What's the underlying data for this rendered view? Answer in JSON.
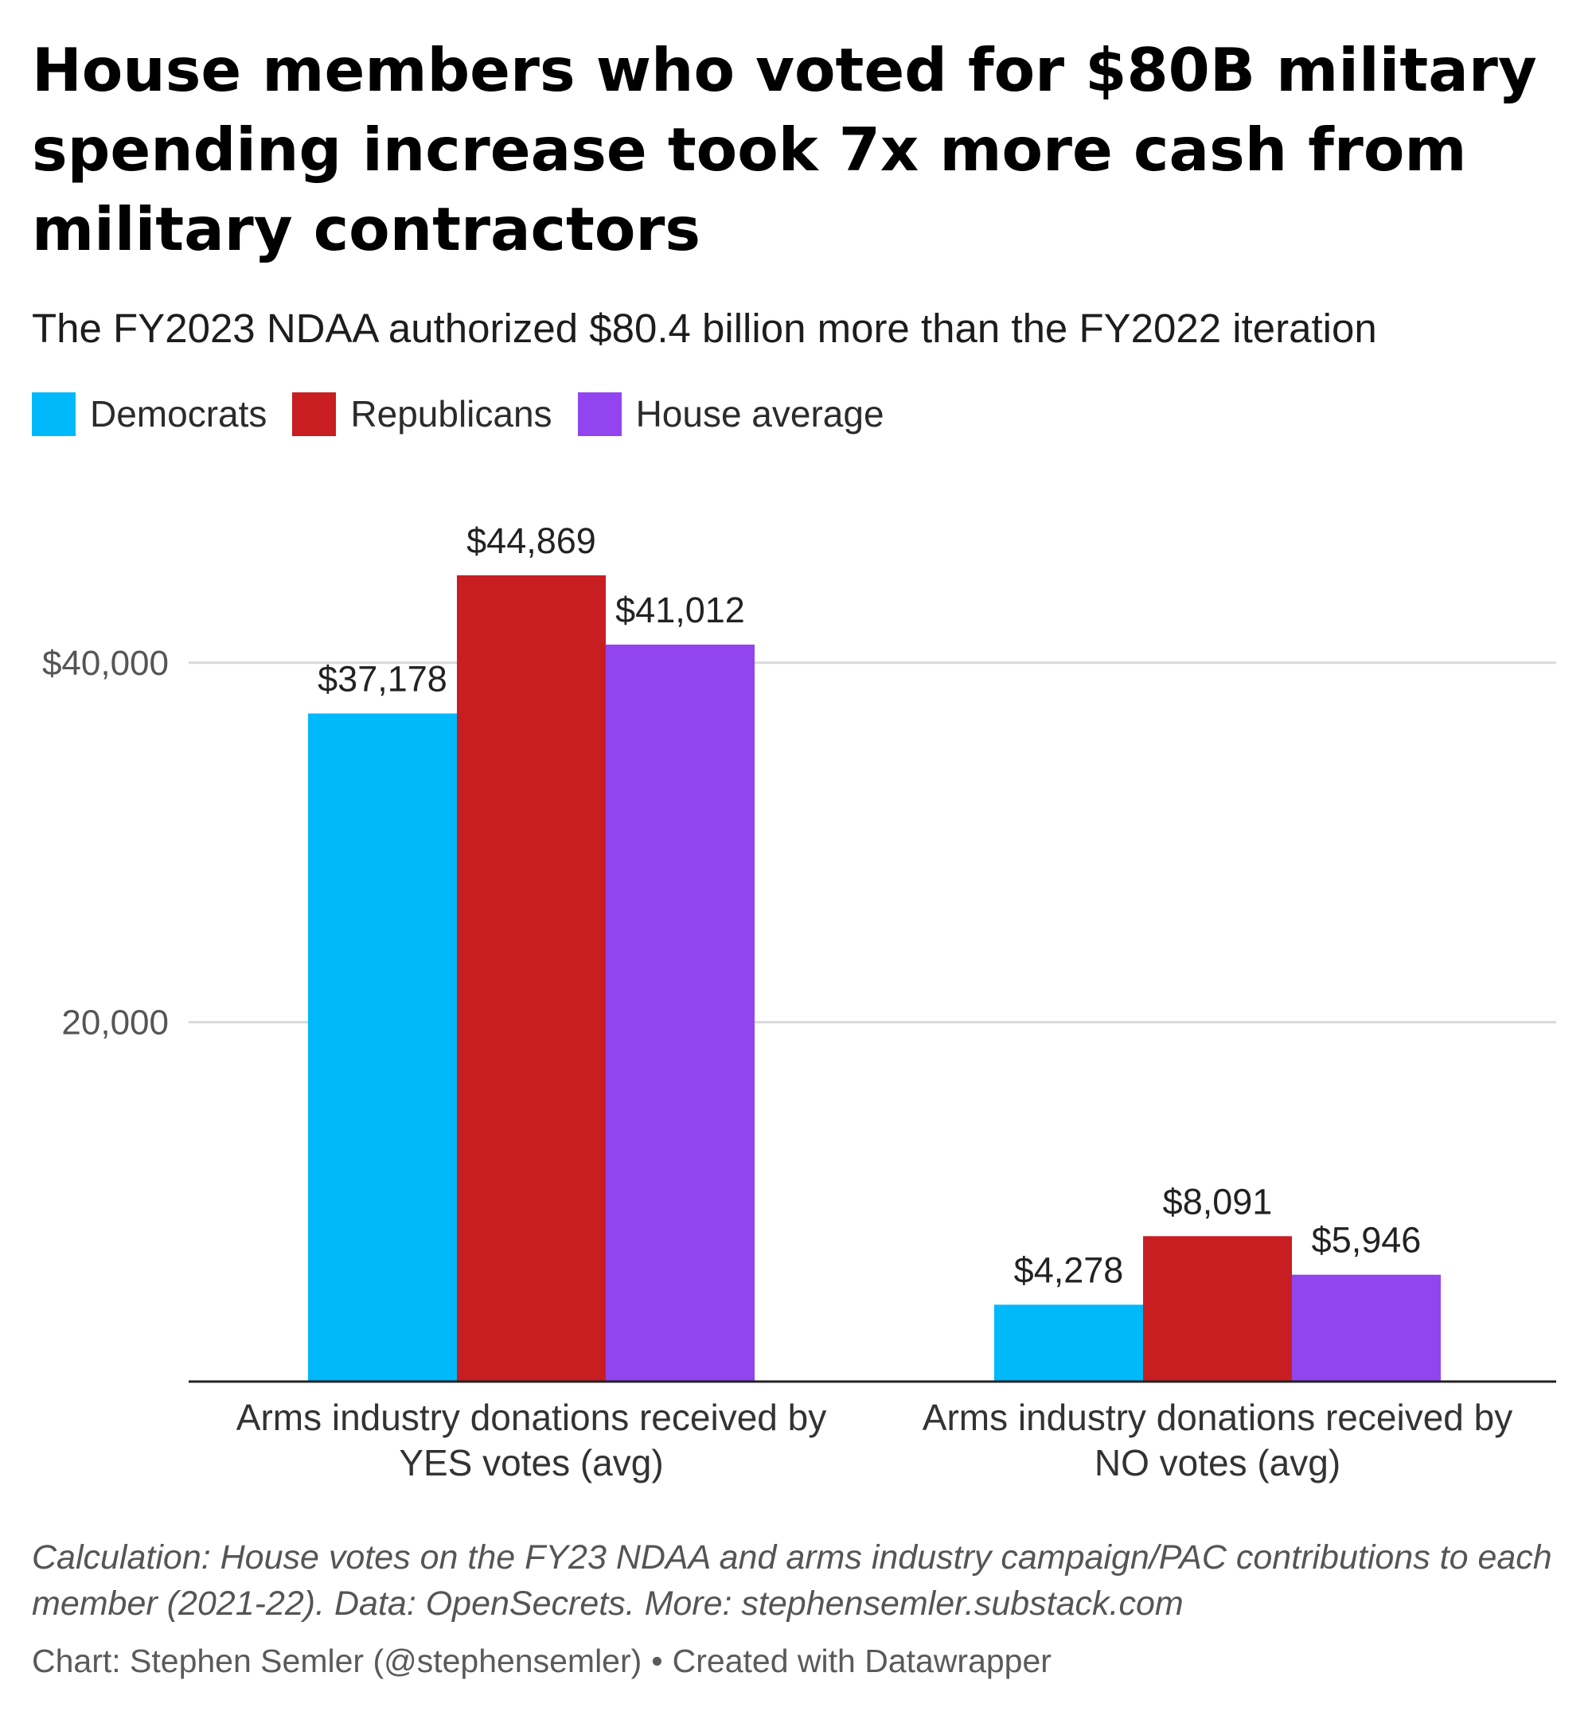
{
  "header": {
    "title": "House members who voted for $80B military spending increase took 7x more cash from military contractors",
    "subtitle": "The FY2023 NDAA authorized $80.4 billion more than the FY2022 iteration"
  },
  "legend": [
    {
      "label": "Democrats",
      "color": "#00b9fb"
    },
    {
      "label": "Republicans",
      "color": "#c81d21"
    },
    {
      "label": "House average",
      "color": "#9245ee"
    }
  ],
  "chart_data": {
    "type": "bar",
    "categories": [
      [
        "Arms industry donations received by",
        "YES votes (avg)"
      ],
      [
        "Arms industry donations received by",
        "NO votes (avg)"
      ]
    ],
    "series": [
      {
        "name": "Democrats",
        "color": "#00b9fb",
        "values": [
          37178,
          4278
        ],
        "labels": [
          "$37,178",
          "$4,278"
        ]
      },
      {
        "name": "Republicans",
        "color": "#c81d21",
        "values": [
          44869,
          8091
        ],
        "labels": [
          "$44,869",
          "$8,091"
        ]
      },
      {
        "name": "House average",
        "color": "#9245ee",
        "values": [
          41012,
          5946
        ],
        "labels": [
          "$41,012",
          "$5,946"
        ]
      }
    ],
    "yticks": [
      {
        "value": 20000,
        "label": "20,000"
      },
      {
        "value": 40000,
        "label": "$40,000"
      }
    ],
    "ylim": [
      0,
      50000
    ],
    "grid": true,
    "legend_position": "top-left"
  },
  "footer": {
    "notes": "Calculation: House votes on the FY23 NDAA and arms industry campaign/PAC contributions to each member (2021-22). Data: OpenSecrets. More: stephensemler.substack.com",
    "credit": "Chart: Stephen Semler (@stephensemler)",
    "separator": "•",
    "tool": "Created with Datawrapper"
  }
}
